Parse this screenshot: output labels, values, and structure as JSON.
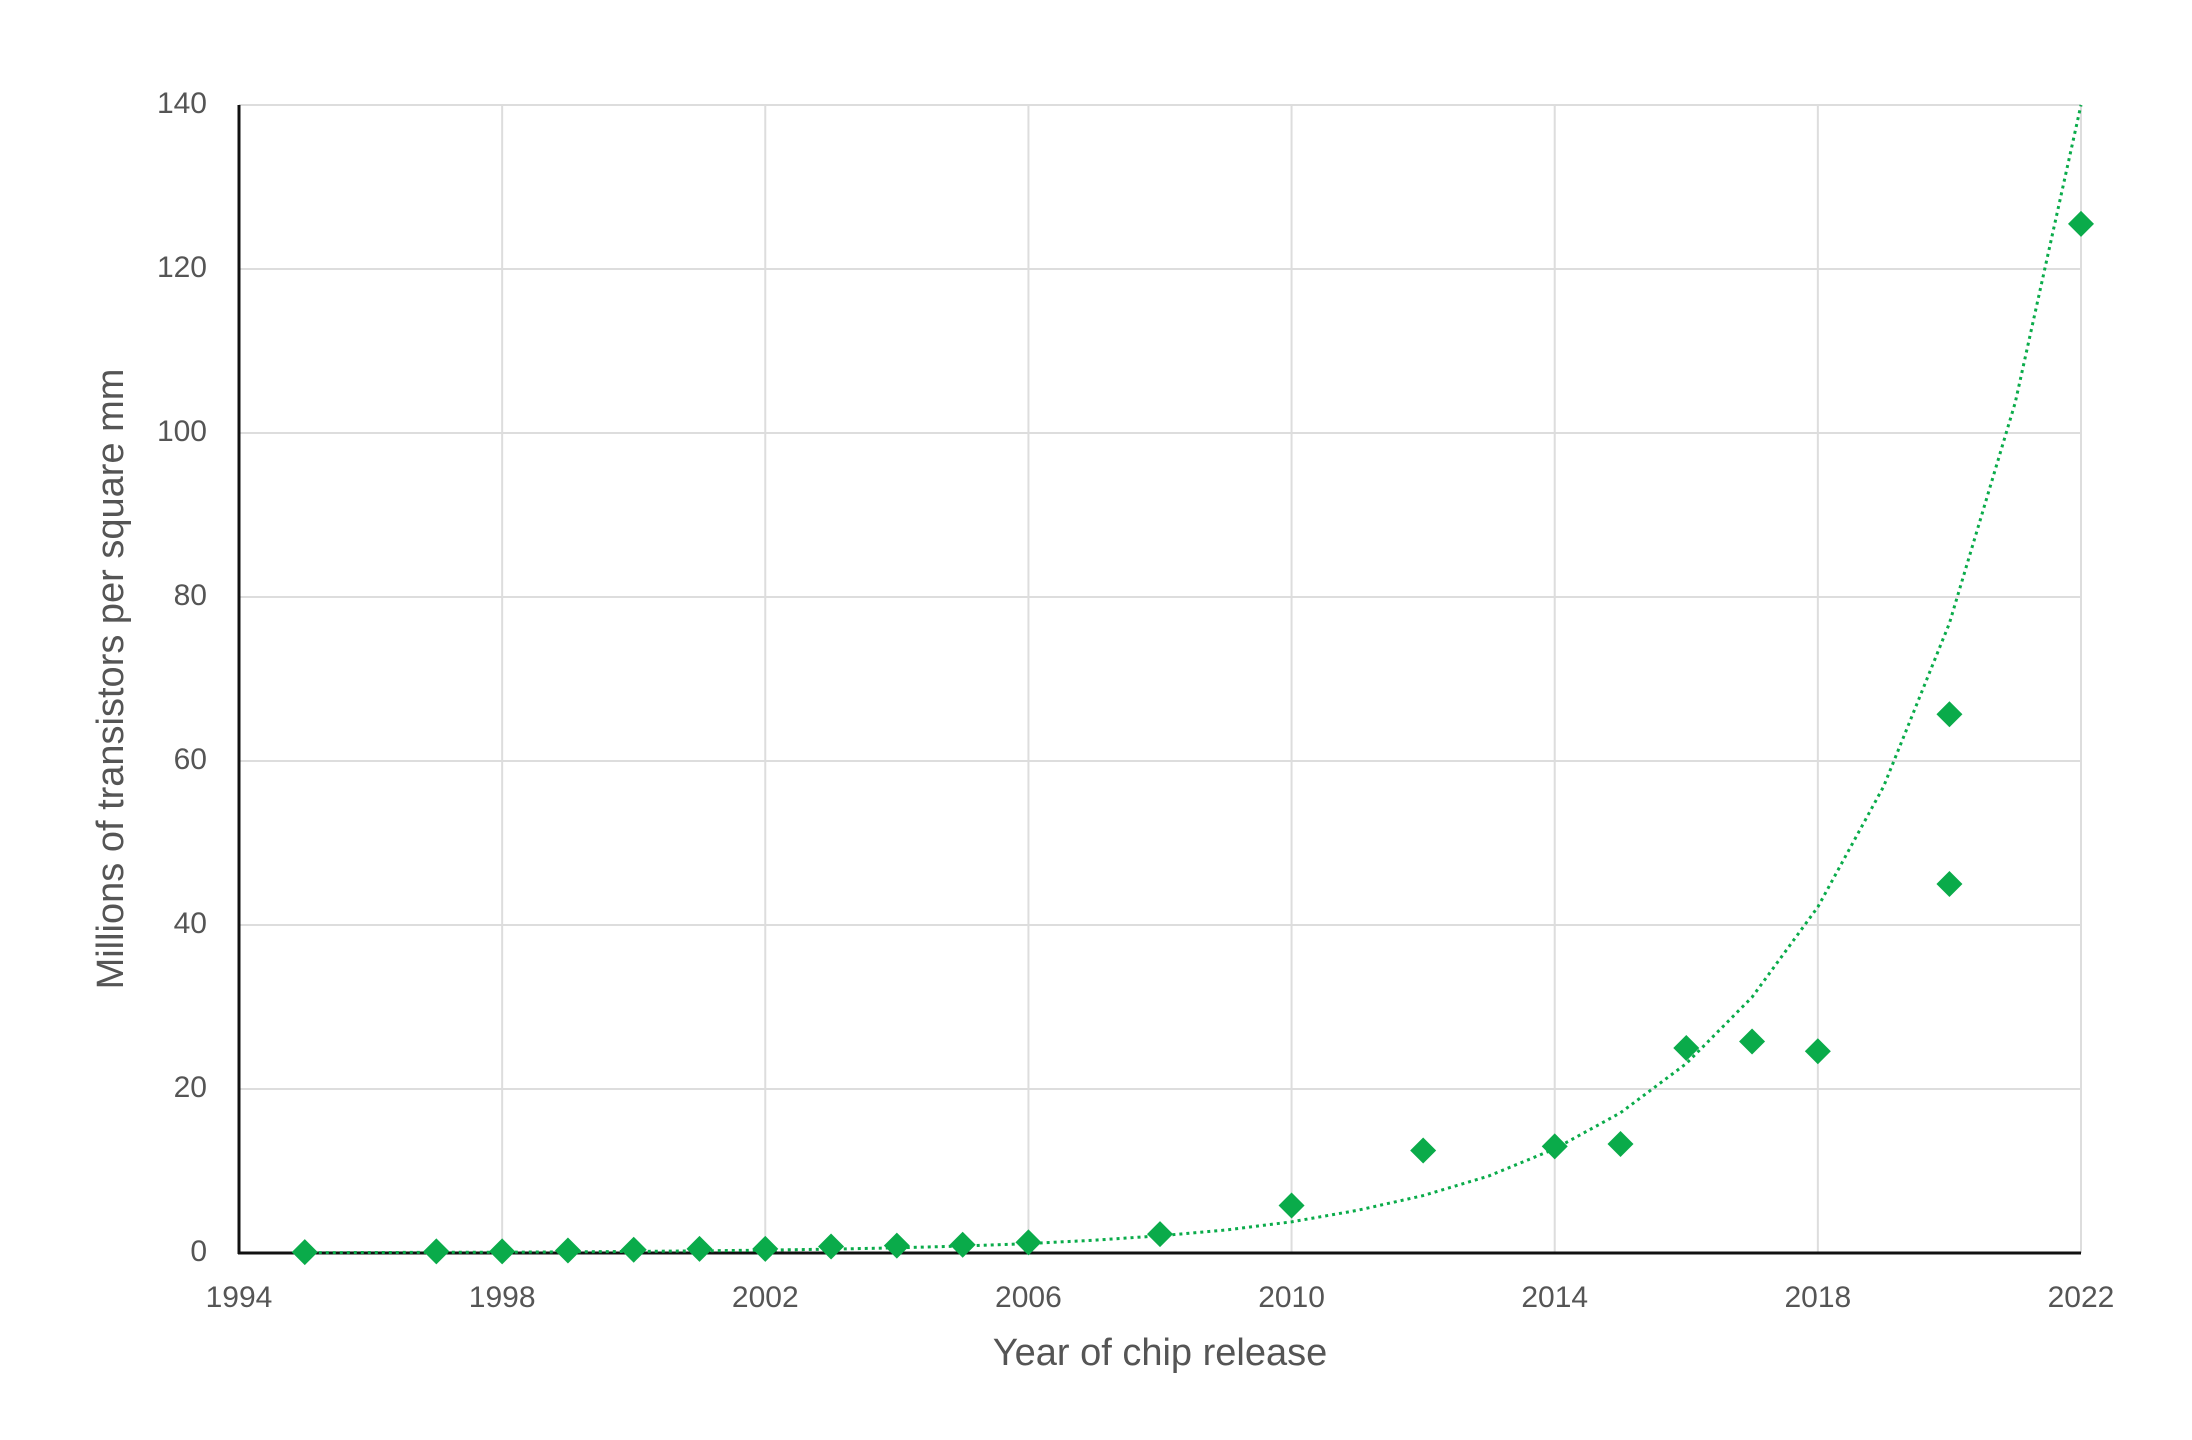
{
  "chart_data": {
    "type": "scatter",
    "x_label": "Year of chip release",
    "y_label": "Millions of transistors per square mm",
    "xlim": [
      1994,
      2022
    ],
    "xticks": [
      1994,
      1998,
      2002,
      2006,
      2010,
      2014,
      2018,
      2022
    ],
    "ylim": [
      0,
      140
    ],
    "yticks": [
      0,
      20,
      40,
      60,
      80,
      100,
      120,
      140
    ],
    "grid": true,
    "series": [
      {
        "type": "scatter",
        "color": "#0aab4a",
        "x": [
          1995,
          1997,
          1998,
          1999,
          2000,
          2001,
          2002,
          2003,
          2004,
          2005,
          2006,
          2008,
          2010,
          2012,
          2014,
          2015,
          2016,
          2017,
          2018,
          2020,
          2020,
          2022
        ],
        "values": [
          0.1,
          0.2,
          0.2,
          0.3,
          0.4,
          0.5,
          0.5,
          0.8,
          0.9,
          1.0,
          1.3,
          2.3,
          5.8,
          12.5,
          13,
          13.3,
          25,
          25.8,
          24.6,
          45,
          65.7,
          125.5
        ]
      },
      {
        "type": "line",
        "style": "dotted",
        "color": "#0aab4a",
        "x": [
          1995,
          1996,
          1997,
          1998,
          1999,
          2000,
          2001,
          2002,
          2003,
          2004,
          2005,
          2006,
          2007,
          2008,
          2009,
          2010,
          2011,
          2012,
          2013,
          2014,
          2015,
          2016,
          2017,
          2018,
          2019,
          2020,
          2021,
          2022
        ],
        "values": [
          0.04,
          0.06,
          0.08,
          0.1,
          0.14,
          0.19,
          0.26,
          0.35,
          0.47,
          0.63,
          0.85,
          1.15,
          1.56,
          2.1,
          2.8,
          3.8,
          5.2,
          7.0,
          9.4,
          12.7,
          17.1,
          23.1,
          31.2,
          42.2,
          56.9,
          76.8,
          103.7,
          140
        ]
      }
    ]
  }
}
